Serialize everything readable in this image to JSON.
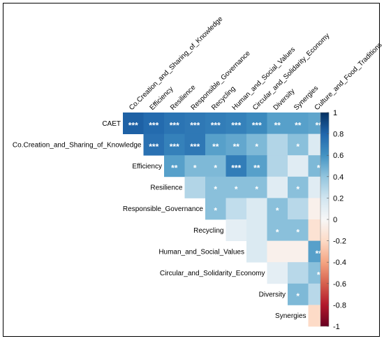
{
  "chart_data": {
    "type": "heatmap",
    "subtype": "upper-triangular correlation matrix",
    "variables": [
      "CAET",
      "Co.Creation_and_Sharing_of_Knowledge",
      "Efficiency",
      "Resilience",
      "Responsible_Governance",
      "Recycling",
      "Human_and_Social_Values",
      "Circular_and_Solidarity_Economy",
      "Diversity",
      "Synergies",
      "Culture_and_Food_Traditions"
    ],
    "row_labels": [
      "CAET",
      "Co.Creation_and_Sharing_of_Knowledge",
      "Efficiency",
      "Resilience",
      "Responsible_Governance",
      "Recycling",
      "Human_and_Social_Values",
      "Circular_and_Solidarity_Economy",
      "Diversity",
      "Synergies"
    ],
    "column_labels": [
      "Co.Creation_and_Sharing_of_Knowledge",
      "Efficiency",
      "Resilience",
      "Responsible_Governance",
      "Recycling",
      "Human_and_Social_Values",
      "Circular_and_Solidarity_Economy",
      "Diversity",
      "Synergies",
      "Culture_and_Food_Traditions"
    ],
    "cells": [
      {
        "row": "CAET",
        "col": "Co.Creation_and_Sharing_of_Knowledge",
        "value": 0.82,
        "sig": "***"
      },
      {
        "row": "CAET",
        "col": "Efficiency",
        "value": 0.78,
        "sig": "***"
      },
      {
        "row": "CAET",
        "col": "Resilience",
        "value": 0.74,
        "sig": "***"
      },
      {
        "row": "CAET",
        "col": "Responsible_Governance",
        "value": 0.72,
        "sig": "***"
      },
      {
        "row": "CAET",
        "col": "Recycling",
        "value": 0.7,
        "sig": "***"
      },
      {
        "row": "CAET",
        "col": "Human_and_Social_Values",
        "value": 0.68,
        "sig": "***"
      },
      {
        "row": "CAET",
        "col": "Circular_and_Solidarity_Economy",
        "value": 0.64,
        "sig": "***"
      },
      {
        "row": "CAET",
        "col": "Diversity",
        "value": 0.55,
        "sig": "**"
      },
      {
        "row": "CAET",
        "col": "Synergies",
        "value": 0.55,
        "sig": "**"
      },
      {
        "row": "CAET",
        "col": "Culture_and_Food_Traditions",
        "value": 0.53,
        "sig": "**"
      },
      {
        "row": "Co.Creation_and_Sharing_of_Knowledge",
        "col": "Efficiency",
        "value": 0.75,
        "sig": "***"
      },
      {
        "row": "Co.Creation_and_Sharing_of_Knowledge",
        "col": "Resilience",
        "value": 0.68,
        "sig": "***"
      },
      {
        "row": "Co.Creation_and_Sharing_of_Knowledge",
        "col": "Responsible_Governance",
        "value": 0.72,
        "sig": "***"
      },
      {
        "row": "Co.Creation_and_Sharing_of_Knowledge",
        "col": "Recycling",
        "value": 0.55,
        "sig": "**"
      },
      {
        "row": "Co.Creation_and_Sharing_of_Knowledge",
        "col": "Human_and_Social_Values",
        "value": 0.52,
        "sig": "**"
      },
      {
        "row": "Co.Creation_and_Sharing_of_Knowledge",
        "col": "Circular_and_Solidarity_Economy",
        "value": 0.45,
        "sig": "*"
      },
      {
        "row": "Co.Creation_and_Sharing_of_Knowledge",
        "col": "Diversity",
        "value": 0.3,
        "sig": ""
      },
      {
        "row": "Co.Creation_and_Sharing_of_Knowledge",
        "col": "Synergies",
        "value": 0.42,
        "sig": "*"
      },
      {
        "row": "Co.Creation_and_Sharing_of_Knowledge",
        "col": "Culture_and_Food_Traditions",
        "value": 0.15,
        "sig": ""
      },
      {
        "row": "Efficiency",
        "col": "Resilience",
        "value": 0.55,
        "sig": "**"
      },
      {
        "row": "Efficiency",
        "col": "Responsible_Governance",
        "value": 0.45,
        "sig": "*"
      },
      {
        "row": "Efficiency",
        "col": "Recycling",
        "value": 0.45,
        "sig": "*"
      },
      {
        "row": "Efficiency",
        "col": "Human_and_Social_Values",
        "value": 0.7,
        "sig": "***"
      },
      {
        "row": "Efficiency",
        "col": "Circular_and_Solidarity_Economy",
        "value": 0.55,
        "sig": "**"
      },
      {
        "row": "Efficiency",
        "col": "Diversity",
        "value": 0.3,
        "sig": ""
      },
      {
        "row": "Efficiency",
        "col": "Synergies",
        "value": 0.12,
        "sig": ""
      },
      {
        "row": "Efficiency",
        "col": "Culture_and_Food_Traditions",
        "value": 0.45,
        "sig": "*"
      },
      {
        "row": "Resilience",
        "col": "Responsible_Governance",
        "value": 0.3,
        "sig": ""
      },
      {
        "row": "Resilience",
        "col": "Recycling",
        "value": 0.42,
        "sig": "*"
      },
      {
        "row": "Resilience",
        "col": "Human_and_Social_Values",
        "value": 0.42,
        "sig": "*"
      },
      {
        "row": "Resilience",
        "col": "Circular_and_Solidarity_Economy",
        "value": 0.42,
        "sig": "*"
      },
      {
        "row": "Resilience",
        "col": "Diversity",
        "value": 0.12,
        "sig": ""
      },
      {
        "row": "Resilience",
        "col": "Synergies",
        "value": 0.42,
        "sig": "*"
      },
      {
        "row": "Resilience",
        "col": "Culture_and_Food_Traditions",
        "value": 0.12,
        "sig": ""
      },
      {
        "row": "Responsible_Governance",
        "col": "Recycling",
        "value": 0.42,
        "sig": "*"
      },
      {
        "row": "Responsible_Governance",
        "col": "Human_and_Social_Values",
        "value": 0.25,
        "sig": ""
      },
      {
        "row": "Responsible_Governance",
        "col": "Circular_and_Solidarity_Economy",
        "value": 0.15,
        "sig": ""
      },
      {
        "row": "Responsible_Governance",
        "col": "Diversity",
        "value": 0.42,
        "sig": "*"
      },
      {
        "row": "Responsible_Governance",
        "col": "Synergies",
        "value": 0.28,
        "sig": ""
      },
      {
        "row": "Responsible_Governance",
        "col": "Culture_and_Food_Traditions",
        "value": -0.05,
        "sig": ""
      },
      {
        "row": "Recycling",
        "col": "Human_and_Social_Values",
        "value": 0.1,
        "sig": ""
      },
      {
        "row": "Recycling",
        "col": "Circular_and_Solidarity_Economy",
        "value": 0.15,
        "sig": ""
      },
      {
        "row": "Recycling",
        "col": "Diversity",
        "value": 0.42,
        "sig": "*"
      },
      {
        "row": "Recycling",
        "col": "Synergies",
        "value": 0.42,
        "sig": "*"
      },
      {
        "row": "Recycling",
        "col": "Culture_and_Food_Traditions",
        "value": -0.15,
        "sig": ""
      },
      {
        "row": "Human_and_Social_Values",
        "col": "Circular_and_Solidarity_Economy",
        "value": 0.15,
        "sig": ""
      },
      {
        "row": "Human_and_Social_Values",
        "col": "Diversity",
        "value": -0.05,
        "sig": ""
      },
      {
        "row": "Human_and_Social_Values",
        "col": "Synergies",
        "value": -0.05,
        "sig": ""
      },
      {
        "row": "Human_and_Social_Values",
        "col": "Culture_and_Food_Traditions",
        "value": 0.55,
        "sig": "**"
      },
      {
        "row": "Circular_and_Solidarity_Economy",
        "col": "Diversity",
        "value": 0.1,
        "sig": ""
      },
      {
        "row": "Circular_and_Solidarity_Economy",
        "col": "Synergies",
        "value": 0.28,
        "sig": ""
      },
      {
        "row": "Circular_and_Solidarity_Economy",
        "col": "Culture_and_Food_Traditions",
        "value": 0.42,
        "sig": "*"
      },
      {
        "row": "Diversity",
        "col": "Synergies",
        "value": 0.45,
        "sig": "*"
      },
      {
        "row": "Diversity",
        "col": "Culture_and_Food_Traditions",
        "value": 0.28,
        "sig": ""
      },
      {
        "row": "Synergies",
        "col": "Culture_and_Food_Traditions",
        "value": -0.2,
        "sig": ""
      }
    ],
    "colorbar": {
      "min": -1,
      "max": 1,
      "ticks": [
        "1",
        "0.8",
        "0.6",
        "0.4",
        "0.2",
        "0",
        "-0.2",
        "-0.4",
        "-0.6",
        "-0.8",
        "-1"
      ],
      "colors": {
        "neg": "#67001f",
        "mid": "#f7f7f7",
        "pos": "#053061"
      }
    },
    "grid": false,
    "legend": "right"
  }
}
